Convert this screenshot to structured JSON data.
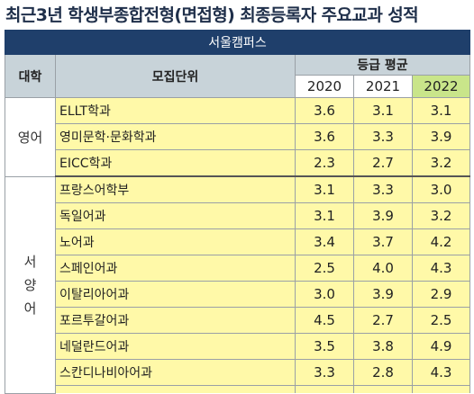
{
  "title": "최근3년 학생부종합전형(면접형) 최종등록자 주요교과 성적",
  "campus": "서울캠퍼스",
  "headers": {
    "university": "대학",
    "unit": "모집단위",
    "grade_avg": "등급 평균",
    "years": [
      "2020",
      "2021",
      "2022"
    ]
  },
  "colors": {
    "title": "#1f2f4a",
    "campus_bar": "#1f3f6b",
    "header_bg": "#c8d3d9",
    "highlight_year": "#c9e58a",
    "cell_bg": "#fff9a8"
  },
  "groups": [
    {
      "name": "영어",
      "rows": [
        {
          "unit": "ELLT학과",
          "values": [
            "3.6",
            "3.1",
            "3.1"
          ]
        },
        {
          "unit": "영미문학·문화학과",
          "values": [
            "3.6",
            "3.3",
            "3.9"
          ]
        },
        {
          "unit": "EICC학과",
          "values": [
            "2.3",
            "2.7",
            "3.2"
          ]
        }
      ]
    },
    {
      "name_chars": [
        "서",
        "양",
        "어"
      ],
      "rows": [
        {
          "unit": "프랑스어학부",
          "values": [
            "3.1",
            "3.3",
            "3.0"
          ]
        },
        {
          "unit": "독일어과",
          "values": [
            "3.1",
            "3.9",
            "3.2"
          ]
        },
        {
          "unit": "노어과",
          "values": [
            "3.4",
            "3.7",
            "4.2"
          ]
        },
        {
          "unit": "스페인어과",
          "values": [
            "2.5",
            "4.0",
            "4.3"
          ]
        },
        {
          "unit": "이탈리아어과",
          "values": [
            "3.0",
            "3.9",
            "2.9"
          ]
        },
        {
          "unit": "포르투갈어과",
          "values": [
            "4.5",
            "2.7",
            "2.5"
          ]
        },
        {
          "unit": "네덜란드어과",
          "values": [
            "3.5",
            "3.8",
            "4.9"
          ]
        },
        {
          "unit": "스칸디나비아어과",
          "values": [
            "3.3",
            "2.8",
            "4.3"
          ]
        }
      ]
    }
  ]
}
